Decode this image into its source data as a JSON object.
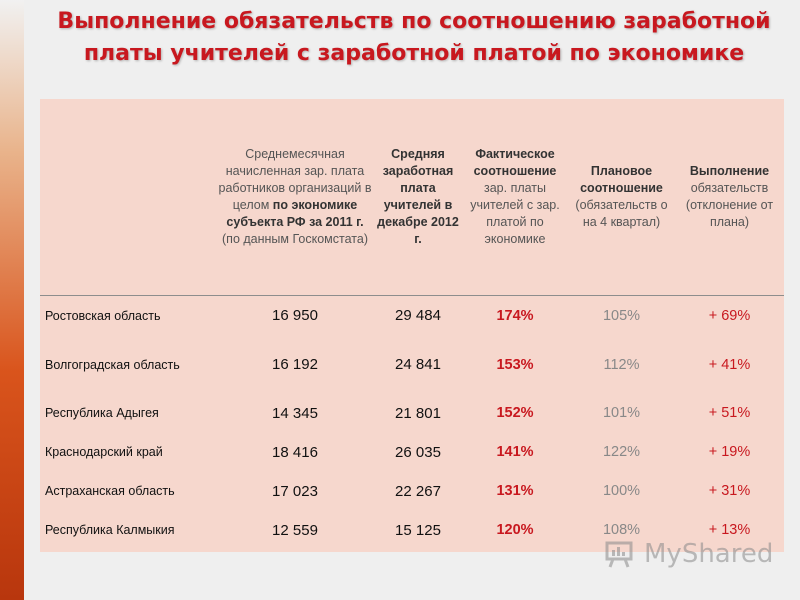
{
  "slide": {
    "title_line1": "Выполнение обязательств по соотношению заработной",
    "title_line2": "платы учителей с заработной платой по экономике",
    "accent_color": "#c8181f",
    "table_background": "#f6d7cd"
  },
  "table": {
    "headers": {
      "col1": {
        "pre": "Среднемесячная начисленная зар. плата работников организаций в целом ",
        "bold": "по экономике субъекта РФ за 2011 г.",
        "post": " (по данным Госкомстата)"
      },
      "col2": "Средняя заработная плата учителей в декабре 2012 г.",
      "col3": {
        "bold": "Фактическое соотношение",
        "normal": "зар. платы учителей с зар. платой по экономике"
      },
      "col4": {
        "bold": "Плановое соотношение",
        "normal": "(обязательств о на 4 квартал)"
      },
      "col5": {
        "bold": "Выполнение",
        "normal": "обязательств (отклонение от плана)"
      }
    },
    "rows": [
      {
        "region": "Ростовская область",
        "avg_wage_2011": "16 950",
        "teacher_wage_2012": "29 484",
        "actual_ratio": "174%",
        "planned_ratio": "105%",
        "deviation": "+ 69%"
      },
      {
        "region": "Волгоградская область",
        "avg_wage_2011": "16 192",
        "teacher_wage_2012": "24 841",
        "actual_ratio": "153%",
        "planned_ratio": "112%",
        "deviation": "+ 41%"
      },
      {
        "region": "Республика Адыгея",
        "avg_wage_2011": "14 345",
        "teacher_wage_2012": "21 801",
        "actual_ratio": "152%",
        "planned_ratio": "101%",
        "deviation": "+ 51%"
      },
      {
        "region": "Краснодарский край",
        "avg_wage_2011": "18 416",
        "teacher_wage_2012": "26 035",
        "actual_ratio": "141%",
        "planned_ratio": "122%",
        "deviation": "+ 19%"
      },
      {
        "region": "Астраханская область",
        "avg_wage_2011": "17 023",
        "teacher_wage_2012": "22 267",
        "actual_ratio": "131%",
        "planned_ratio": "100%",
        "deviation": "+ 31%"
      },
      {
        "region": "Республика Калмыкия",
        "avg_wage_2011": "12 559",
        "teacher_wage_2012": "15 125",
        "actual_ratio": "120%",
        "planned_ratio": "108%",
        "deviation": "+ 13%"
      }
    ]
  },
  "watermark": {
    "text": "MyShared",
    "icon": "presentation-board-icon"
  }
}
